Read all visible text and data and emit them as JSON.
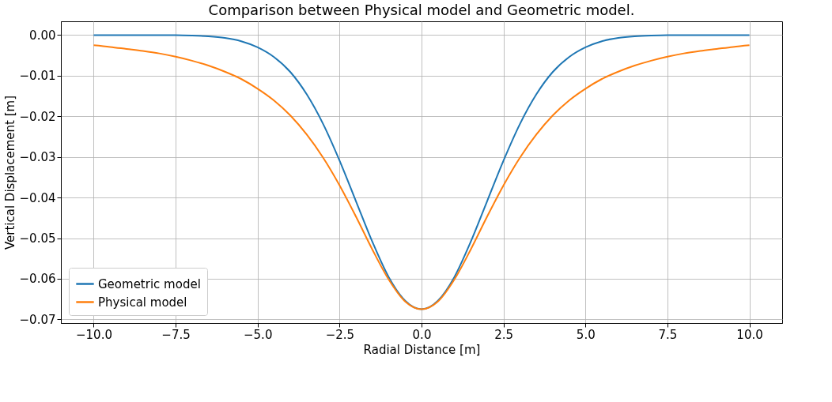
{
  "chart_data": {
    "type": "line",
    "title": "Comparison between Physical model and Geometric model.",
    "xlabel": "Radial Distance [m]",
    "ylabel": "Vertical Displacement [m]",
    "x": [
      -10,
      -9.5,
      -9,
      -8.5,
      -8,
      -7.5,
      -7,
      -6.5,
      -6,
      -5.5,
      -5,
      -4.5,
      -4,
      -3.5,
      -3,
      -2.5,
      -2,
      -1.5,
      -1,
      -0.5,
      0,
      0.5,
      1,
      1.5,
      2,
      2.5,
      3,
      3.5,
      4,
      4.5,
      5,
      5.5,
      6,
      6.5,
      7,
      7.5,
      8,
      8.5,
      9,
      9.5,
      10
    ],
    "series": [
      {
        "name": "Geometric model",
        "color": "#1f77b4",
        "values": [
          0,
          0,
          0,
          0,
          0,
          0,
          -0.0001,
          -0.0003,
          -0.0007,
          -0.0015,
          -0.003,
          -0.0054,
          -0.0091,
          -0.0146,
          -0.0219,
          -0.0309,
          -0.0409,
          -0.0509,
          -0.0596,
          -0.0654,
          -0.0675,
          -0.0654,
          -0.0596,
          -0.0509,
          -0.0409,
          -0.0309,
          -0.0219,
          -0.0146,
          -0.0091,
          -0.0054,
          -0.003,
          -0.0015,
          -0.0007,
          -0.0003,
          -0.0001,
          0,
          0,
          0,
          0,
          0,
          0
        ]
      },
      {
        "name": "Physical model",
        "color": "#ff7f0e",
        "values": [
          -0.0025,
          -0.0029,
          -0.0034,
          -0.0039,
          -0.0045,
          -0.0053,
          -0.0063,
          -0.0075,
          -0.009,
          -0.0108,
          -0.0132,
          -0.0161,
          -0.0198,
          -0.0245,
          -0.0302,
          -0.037,
          -0.0447,
          -0.0528,
          -0.0602,
          -0.0656,
          -0.0675,
          -0.0656,
          -0.0602,
          -0.0528,
          -0.0447,
          -0.037,
          -0.0302,
          -0.0245,
          -0.0198,
          -0.0161,
          -0.0132,
          -0.0108,
          -0.009,
          -0.0075,
          -0.0063,
          -0.0053,
          -0.0045,
          -0.0039,
          -0.0034,
          -0.0029,
          -0.0025
        ]
      }
    ],
    "xlim": [
      -11,
      11
    ],
    "ylim": [
      -0.0709,
      0.0034
    ],
    "xticks": [
      {
        "value": -10,
        "label": "−10.0"
      },
      {
        "value": -7.5,
        "label": "−7.5"
      },
      {
        "value": -5,
        "label": "−5.0"
      },
      {
        "value": -2.5,
        "label": "−2.5"
      },
      {
        "value": 0,
        "label": "0.0"
      },
      {
        "value": 2.5,
        "label": "2.5"
      },
      {
        "value": 5,
        "label": "5.0"
      },
      {
        "value": 7.5,
        "label": "7.5"
      },
      {
        "value": 10,
        "label": "10.0"
      }
    ],
    "yticks": [
      {
        "value": 0,
        "label": "0.00"
      },
      {
        "value": -0.01,
        "label": "−0.01"
      },
      {
        "value": -0.02,
        "label": "−0.02"
      },
      {
        "value": -0.03,
        "label": "−0.03"
      },
      {
        "value": -0.04,
        "label": "−0.04"
      },
      {
        "value": -0.05,
        "label": "−0.05"
      },
      {
        "value": -0.06,
        "label": "−0.06"
      },
      {
        "value": -0.07,
        "label": "−0.07"
      }
    ],
    "grid": true,
    "legend": "bottom left",
    "marker": "none",
    "line_style": "solid"
  }
}
